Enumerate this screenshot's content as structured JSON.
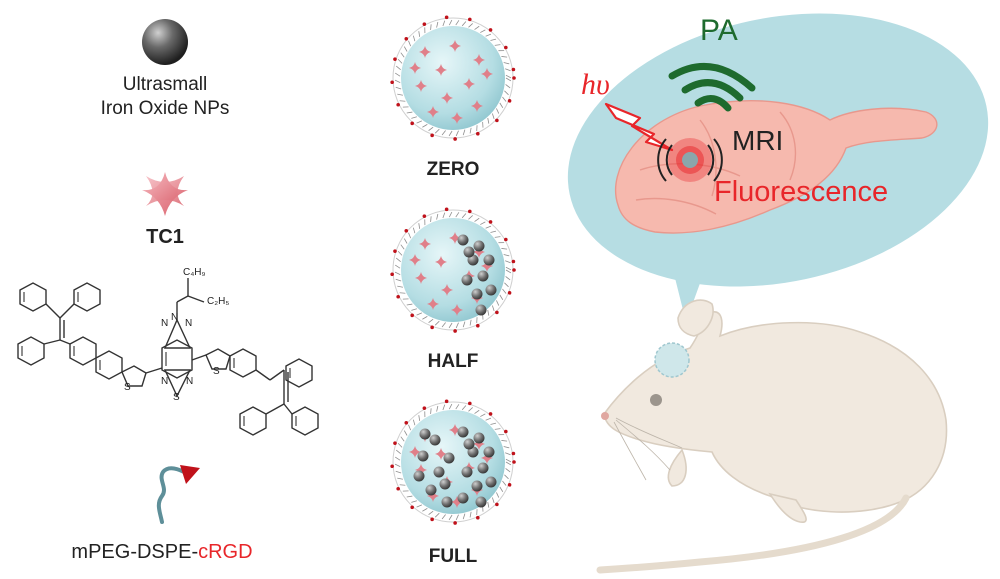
{
  "legend": {
    "iron_oxide_line1": "Ultrasmall",
    "iron_oxide_line2": "Iron Oxide NPs",
    "tc1_label": "TC1",
    "peg_prefix": "mPEG-DSPE-",
    "peg_suffix": "cRGD"
  },
  "structure": {
    "alkyl_top": "C₄H₉",
    "alkyl_bottom": "C₂H₅",
    "atom_N": "N",
    "atom_S": "S"
  },
  "nanoparticles": [
    {
      "label": "ZERO",
      "iron_fraction": 0
    },
    {
      "label": "HALF",
      "iron_fraction": 0.5
    },
    {
      "label": "FULL",
      "iron_fraction": 1
    }
  ],
  "imaging": {
    "pa": "PA",
    "mri": "MRI",
    "fluorescence": "Fluorescence",
    "light": "hυ"
  },
  "colors": {
    "pa_green": "#1e6b2e",
    "fluorescence_red": "#e8262a",
    "brain_pink": "#f6b9ae",
    "bubble_blue": "#b6dde3",
    "mouse_body": "#f1e9df",
    "np_core": "#b9e0e6"
  }
}
